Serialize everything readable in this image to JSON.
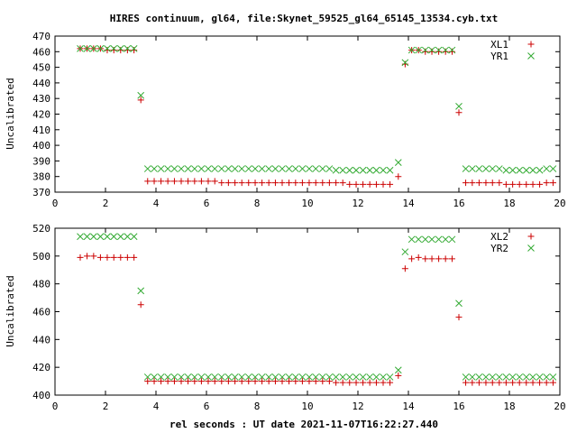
{
  "title": "HIRES continuum, gl64, file:Skynet_59525_gl64_65145_13534.cyb.txt",
  "colors": {
    "red": "#cc0000",
    "green": "#33aa33"
  },
  "chart_data": [
    {
      "type": "scatter",
      "ylabel": "Uncalibrated",
      "xlim": [
        0,
        20
      ],
      "ylim": [
        370,
        470
      ],
      "xticks": [
        0,
        2,
        4,
        6,
        8,
        10,
        12,
        14,
        16,
        18,
        20
      ],
      "yticks": [
        370,
        380,
        390,
        400,
        410,
        420,
        430,
        440,
        450,
        460,
        470
      ],
      "legend_position": "top-right",
      "series": [
        {
          "name": "XL1",
          "marker": "plus",
          "color": "#cc0000",
          "x": [
            1.0,
            1.27,
            1.53,
            1.8,
            2.07,
            2.33,
            2.6,
            2.87,
            3.13,
            3.4,
            3.67,
            3.93,
            4.2,
            4.47,
            4.73,
            5.0,
            5.27,
            5.53,
            5.8,
            6.07,
            6.33,
            6.6,
            6.87,
            7.13,
            7.4,
            7.67,
            7.93,
            8.2,
            8.47,
            8.73,
            9.0,
            9.27,
            9.53,
            9.8,
            10.07,
            10.33,
            10.6,
            10.87,
            11.13,
            11.4,
            11.67,
            11.93,
            12.2,
            12.47,
            12.73,
            13.0,
            13.27,
            13.6,
            13.87,
            14.13,
            14.4,
            14.67,
            14.93,
            15.2,
            15.47,
            15.73,
            16.0,
            16.27,
            16.53,
            16.8,
            17.07,
            17.33,
            17.6,
            17.87,
            18.13,
            18.4,
            18.67,
            18.93,
            19.2,
            19.47,
            19.73
          ],
          "y": [
            462,
            462,
            462,
            462,
            461,
            461,
            461,
            461,
            461,
            429,
            377,
            377,
            377,
            377,
            377,
            377,
            377,
            377,
            377,
            377,
            377,
            376,
            376,
            376,
            376,
            376,
            376,
            376,
            376,
            376,
            376,
            376,
            376,
            376,
            376,
            376,
            376,
            376,
            376,
            376,
            375,
            375,
            375,
            375,
            375,
            375,
            375,
            380,
            452,
            461,
            461,
            460,
            460,
            460,
            460,
            460,
            421,
            376,
            376,
            376,
            376,
            376,
            376,
            375,
            375,
            375,
            375,
            375,
            375,
            376,
            376
          ]
        },
        {
          "name": "YR1",
          "marker": "cross",
          "color": "#33aa33",
          "x": [
            1.0,
            1.27,
            1.53,
            1.8,
            2.07,
            2.33,
            2.6,
            2.87,
            3.13,
            3.4,
            3.67,
            3.93,
            4.2,
            4.47,
            4.73,
            5.0,
            5.27,
            5.53,
            5.8,
            6.07,
            6.33,
            6.6,
            6.87,
            7.13,
            7.4,
            7.67,
            7.93,
            8.2,
            8.47,
            8.73,
            9.0,
            9.27,
            9.53,
            9.8,
            10.07,
            10.33,
            10.6,
            10.87,
            11.13,
            11.4,
            11.67,
            11.93,
            12.2,
            12.47,
            12.73,
            13.0,
            13.27,
            13.6,
            13.87,
            14.13,
            14.4,
            14.67,
            14.93,
            15.2,
            15.47,
            15.73,
            16.0,
            16.27,
            16.53,
            16.8,
            17.07,
            17.33,
            17.6,
            17.87,
            18.13,
            18.4,
            18.67,
            18.93,
            19.2,
            19.47,
            19.73
          ],
          "y": [
            462,
            462,
            462,
            462,
            462,
            462,
            462,
            462,
            462,
            432,
            385,
            385,
            385,
            385,
            385,
            385,
            385,
            385,
            385,
            385,
            385,
            385,
            385,
            385,
            385,
            385,
            385,
            385,
            385,
            385,
            385,
            385,
            385,
            385,
            385,
            385,
            385,
            385,
            384,
            384,
            384,
            384,
            384,
            384,
            384,
            384,
            384,
            389,
            453,
            461,
            461,
            461,
            461,
            461,
            461,
            461,
            425,
            385,
            385,
            385,
            385,
            385,
            385,
            384,
            384,
            384,
            384,
            384,
            384,
            385,
            385
          ]
        }
      ]
    },
    {
      "type": "scatter",
      "xlabel": "rel seconds : UT date 2021-11-07T16:22:27.440",
      "ylabel": "Uncalibrated",
      "xlim": [
        0,
        20
      ],
      "ylim": [
        400,
        520
      ],
      "xticks": [
        0,
        2,
        4,
        6,
        8,
        10,
        12,
        14,
        16,
        18,
        20
      ],
      "yticks": [
        400,
        420,
        440,
        460,
        480,
        500,
        520
      ],
      "legend_position": "top-right",
      "series": [
        {
          "name": "XL2",
          "marker": "plus",
          "color": "#cc0000",
          "x": [
            1.0,
            1.27,
            1.53,
            1.8,
            2.07,
            2.33,
            2.6,
            2.87,
            3.13,
            3.4,
            3.67,
            3.93,
            4.2,
            4.47,
            4.73,
            5.0,
            5.27,
            5.53,
            5.8,
            6.07,
            6.33,
            6.6,
            6.87,
            7.13,
            7.4,
            7.67,
            7.93,
            8.2,
            8.47,
            8.73,
            9.0,
            9.27,
            9.53,
            9.8,
            10.07,
            10.33,
            10.6,
            10.87,
            11.13,
            11.4,
            11.67,
            11.93,
            12.2,
            12.47,
            12.73,
            13.0,
            13.27,
            13.6,
            13.87,
            14.13,
            14.4,
            14.67,
            14.93,
            15.2,
            15.47,
            15.73,
            16.0,
            16.27,
            16.53,
            16.8,
            17.07,
            17.33,
            17.6,
            17.87,
            18.13,
            18.4,
            18.67,
            18.93,
            19.2,
            19.47,
            19.73
          ],
          "y": [
            499,
            500,
            500,
            499,
            499,
            499,
            499,
            499,
            499,
            465,
            410,
            410,
            410,
            410,
            410,
            410,
            410,
            410,
            410,
            410,
            410,
            410,
            410,
            410,
            410,
            410,
            410,
            410,
            410,
            410,
            410,
            410,
            410,
            410,
            410,
            410,
            410,
            410,
            409,
            409,
            409,
            409,
            409,
            409,
            409,
            409,
            409,
            414,
            491,
            498,
            499,
            498,
            498,
            498,
            498,
            498,
            456,
            409,
            409,
            409,
            409,
            409,
            409,
            409,
            409,
            409,
            409,
            409,
            409,
            409,
            409
          ]
        },
        {
          "name": "YR2",
          "marker": "cross",
          "color": "#33aa33",
          "x": [
            1.0,
            1.27,
            1.53,
            1.8,
            2.07,
            2.33,
            2.6,
            2.87,
            3.13,
            3.4,
            3.67,
            3.93,
            4.2,
            4.47,
            4.73,
            5.0,
            5.27,
            5.53,
            5.8,
            6.07,
            6.33,
            6.6,
            6.87,
            7.13,
            7.4,
            7.67,
            7.93,
            8.2,
            8.47,
            8.73,
            9.0,
            9.27,
            9.53,
            9.8,
            10.07,
            10.33,
            10.6,
            10.87,
            11.13,
            11.4,
            11.67,
            11.93,
            12.2,
            12.47,
            12.73,
            13.0,
            13.27,
            13.6,
            13.87,
            14.13,
            14.4,
            14.67,
            14.93,
            15.2,
            15.47,
            15.73,
            16.0,
            16.27,
            16.53,
            16.8,
            17.07,
            17.33,
            17.6,
            17.87,
            18.13,
            18.4,
            18.67,
            18.93,
            19.2,
            19.47,
            19.73
          ],
          "y": [
            514,
            514,
            514,
            514,
            514,
            514,
            514,
            514,
            514,
            475,
            413,
            413,
            413,
            413,
            413,
            413,
            413,
            413,
            413,
            413,
            413,
            413,
            413,
            413,
            413,
            413,
            413,
            413,
            413,
            413,
            413,
            413,
            413,
            413,
            413,
            413,
            413,
            413,
            413,
            413,
            413,
            413,
            413,
            413,
            413,
            413,
            413,
            418,
            503,
            512,
            512,
            512,
            512,
            512,
            512,
            512,
            466,
            413,
            413,
            413,
            413,
            413,
            413,
            413,
            413,
            413,
            413,
            413,
            413,
            413,
            413
          ]
        }
      ]
    }
  ]
}
